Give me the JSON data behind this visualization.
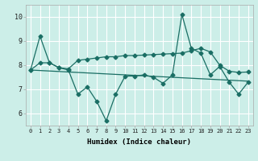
{
  "xlabel": "Humidex (Indice chaleur)",
  "ylabel": "",
  "bg_color": "#cceee8",
  "grid_color": "#ffffff",
  "line_color": "#1a6e64",
  "xlim": [
    -0.5,
    23.5
  ],
  "ylim": [
    5.5,
    10.5
  ],
  "yticks": [
    6,
    7,
    8,
    9,
    10
  ],
  "xticks": [
    0,
    1,
    2,
    3,
    4,
    5,
    6,
    7,
    8,
    9,
    10,
    11,
    12,
    13,
    14,
    15,
    16,
    17,
    18,
    19,
    20,
    21,
    22,
    23
  ],
  "series1": [
    7.8,
    9.2,
    8.1,
    7.9,
    7.8,
    6.8,
    7.1,
    6.5,
    5.7,
    6.8,
    7.55,
    7.55,
    7.6,
    7.5,
    7.25,
    7.6,
    10.1,
    8.7,
    8.5,
    7.6,
    7.95,
    7.3,
    6.8,
    7.3
  ],
  "series2": [
    7.8,
    8.1,
    8.1,
    7.9,
    7.85,
    8.2,
    8.25,
    8.3,
    8.35,
    8.35,
    8.4,
    8.4,
    8.42,
    8.44,
    8.46,
    8.48,
    8.5,
    8.6,
    8.7,
    8.55,
    8.0,
    7.75,
    7.7,
    7.72
  ],
  "series3": [
    7.8,
    7.78,
    7.76,
    7.74,
    7.72,
    7.7,
    7.68,
    7.66,
    7.64,
    7.62,
    7.6,
    7.58,
    7.56,
    7.54,
    7.52,
    7.5,
    7.48,
    7.46,
    7.44,
    7.42,
    7.4,
    7.38,
    7.36,
    7.34
  ]
}
